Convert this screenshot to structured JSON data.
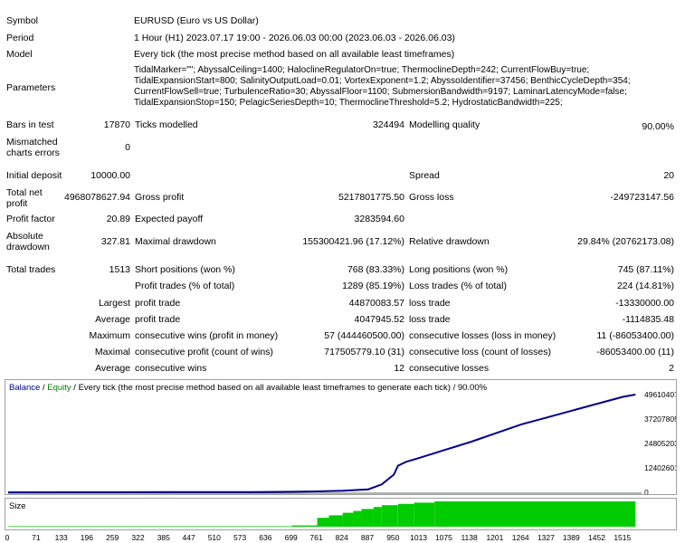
{
  "info": {
    "symbol_label": "Symbol",
    "symbol_value": "EURUSD (Euro vs US Dollar)",
    "period_label": "Period",
    "period_value": "1 Hour (H1) 2023.07.17 19:00 - 2026.06.03 00:00 (2023.06.03 - 2026.06.03)",
    "model_label": "Model",
    "model_value": "Every tick (the most precise method based on all available least timeframes)",
    "parameters_label": "Parameters",
    "parameters_value": "TidalMarker=\"\"; AbyssalCeiling=1400; HaloclineRegulatorOn=true; ThermoclineDepth=242; CurrentFlowBuy=true; TidalExpansionStart=800; SalinityOutputLoad=0.01; VortexExponent=1.2; AbyssoIdentifier=37456; BenthicCycleDepth=354; CurrentFlowSell=true; TurbulenceRatio=30; AbyssalFloor=1100; SubmersionBandwidth=9197; LaminarLatencyMode=false; TidalExpansionStop=150; PelagicSeriesDepth=10; ThermoclineThreshold=5.2; HydrostaticBandwidth=225;"
  },
  "stats": {
    "bars_label": "Bars in test",
    "bars_value": "17870",
    "ticks_label": "Ticks modelled",
    "ticks_value": "324494",
    "quality_label": "Modelling quality",
    "quality_value": "90.00%",
    "mismatched_label_1": "Mismatched",
    "mismatched_label_2": "charts errors",
    "mismatched_value": "0",
    "deposit_label": "Initial deposit",
    "deposit_value": "10000.00",
    "spread_label": "Spread",
    "spread_value": "20",
    "net_label_1": "Total net",
    "net_label_2": "profit",
    "net_value": "4968078627.94",
    "gross_profit_label": "Gross profit",
    "gross_profit_value": "5217801775.50",
    "gross_loss_label": "Gross loss",
    "gross_loss_value": "-249723147.56",
    "pf_label": "Profit factor",
    "pf_value": "20.89",
    "payoff_label": "Expected payoff",
    "payoff_value": "3283594.60",
    "abs_dd_label_1": "Absolute",
    "abs_dd_label_2": "drawdown",
    "abs_dd_value": "327.81",
    "max_dd_label": "Maximal drawdown",
    "max_dd_value": "155300421.96 (17.12%)",
    "rel_dd_label": "Relative drawdown",
    "rel_dd_value": "29.84% (20762173.08)",
    "trades_label": "Total trades",
    "trades_value": "1513",
    "short_label": "Short positions (won %)",
    "short_value": "768 (83.33%)",
    "long_label": "Long positions (won %)",
    "long_value": "745 (87.11%)",
    "profit_trades_label": "Profit trades (% of total)",
    "profit_trades_value": "1289 (85.19%)",
    "loss_trades_label": "Loss trades (% of total)",
    "loss_trades_value": "224 (14.81%)",
    "largest_label": "Largest",
    "largest_profit_label": "profit trade",
    "largest_profit_value": "44870083.57",
    "largest_loss_label": "loss trade",
    "largest_loss_value": "-13330000.00",
    "average_label": "Average",
    "average_profit_label": "profit trade",
    "average_profit_value": "4047945.52",
    "average_loss_label": "loss trade",
    "average_loss_value": "-1114835.48",
    "maximum_label": "Maximum",
    "max_cons_wins_label": "consecutive wins (profit in money)",
    "max_cons_wins_value": "57 (444460500.00)",
    "max_cons_losses_label": "consecutive losses (loss in money)",
    "max_cons_losses_value": "11 (-86053400.00)",
    "maximal_label": "Maximal",
    "maximal_profit_label": "consecutive profit (count of wins)",
    "maximal_profit_value": "717505779.10 (31)",
    "maximal_loss_label": "consecutive loss (count of losses)",
    "maximal_loss_value": "-86053400.00 (11)",
    "avg_cons_label": "Average",
    "avg_cons_wins_label": "consecutive wins",
    "avg_cons_wins_value": "12",
    "avg_cons_losses_label": "consecutive losses",
    "avg_cons_losses_value": "2"
  },
  "chart_legend": {
    "balance": "Balance",
    "sep1": " / ",
    "equity": "Equity",
    "rest": " / Every tick (the most precise method based on all available least timeframes to generate each tick) / 90.00%"
  },
  "size_label": "Size",
  "colors": {
    "balance": "#00008b",
    "equity": "#008000",
    "size_bars": "#00cc00"
  },
  "chart_data": {
    "type": "line",
    "y_ticks": [
      "49610407",
      "37207805",
      "24805203",
      "12402601",
      "0"
    ],
    "y_tick_values": [
      49610407,
      37207805,
      24805203,
      12402601,
      0
    ],
    "ylim": [
      0,
      52000000
    ],
    "x_ticks": [
      "0",
      "71",
      "133",
      "196",
      "259",
      "322",
      "385",
      "447",
      "510",
      "573",
      "636",
      "699",
      "761",
      "824",
      "887",
      "950",
      "1013",
      "1075",
      "1138",
      "1201",
      "1264",
      "1327",
      "1389",
      "1452",
      "1515"
    ],
    "xlim": [
      0,
      1560
    ],
    "series": [
      {
        "name": "Balance",
        "x": [
          0,
          200,
          400,
          600,
          699,
          761,
          824,
          887,
          920,
          950,
          960,
          980,
          1013,
          1075,
          1138,
          1201,
          1264,
          1327,
          1389,
          1452,
          1515,
          1545
        ],
        "y": [
          10000,
          40000,
          90000,
          160000,
          280000,
          450000,
          800000,
          1500000,
          4000000,
          9000000,
          13500000,
          15500000,
          17500000,
          21500000,
          25500000,
          30000000,
          34500000,
          38000000,
          41500000,
          45000000,
          48500000,
          49610407
        ]
      }
    ],
    "size_bars": {
      "x": [
        0,
        699,
        761,
        790,
        824,
        850,
        870,
        900,
        920,
        960,
        1000,
        1050,
        1545
      ],
      "level": [
        0.02,
        0.05,
        0.35,
        0.45,
        0.55,
        0.62,
        0.7,
        0.78,
        0.85,
        0.9,
        0.95,
        1.0,
        1.0
      ]
    }
  }
}
